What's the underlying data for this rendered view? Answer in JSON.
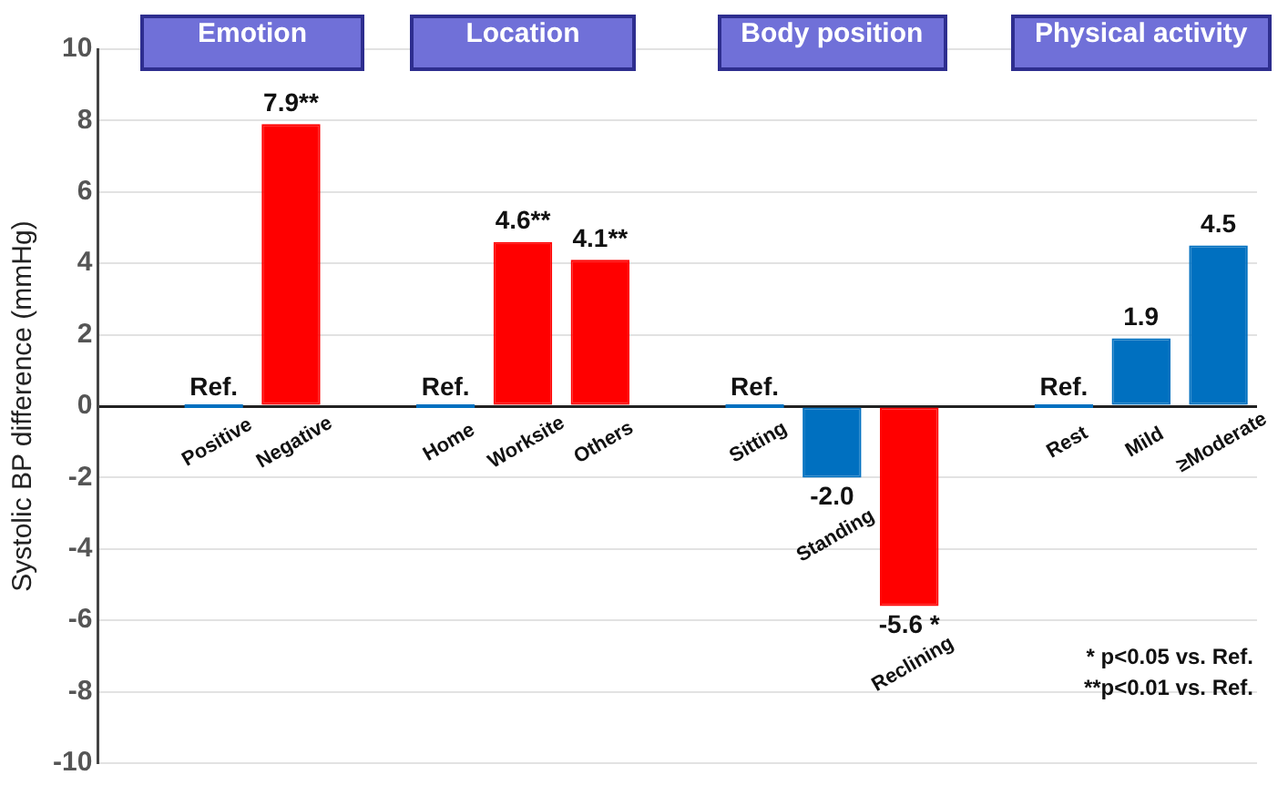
{
  "chart_data": {
    "type": "bar",
    "ylabel": "Systolic BP difference (mmHg)",
    "categories": [
      null,
      "Positive",
      "Negative",
      null,
      "Home",
      "Worksite",
      "Others",
      null,
      "Sitting",
      "Standing",
      "Reclining",
      null,
      "Rest",
      "Mild",
      "≥Moderate"
    ],
    "values": [
      null,
      0,
      7.9,
      null,
      0,
      4.6,
      4.1,
      null,
      0,
      -2.0,
      -5.6,
      null,
      0,
      1.9,
      4.5
    ],
    "colors": [
      "#0070c0",
      "#0070c0",
      "#ff0000",
      "#0070c0",
      "#0070c0",
      "#ff0000",
      "#ff0000",
      "#0070c0",
      "#0070c0",
      "#0070c0",
      "#ff0000",
      "#0070c0",
      "#0070c0",
      "#0070c0",
      "#0070c0"
    ],
    "value_labels": [
      null,
      "Ref.",
      "7.9**",
      null,
      "Ref.",
      "4.6**",
      "4.1**",
      null,
      "Ref.",
      "-2.0",
      "-5.6 *",
      null,
      "Ref.",
      "1.9",
      "4.5"
    ],
    "ylim": [
      -10,
      10
    ],
    "yticks": [
      -10,
      -8,
      -6,
      -4,
      -2,
      0,
      2,
      4,
      6,
      8,
      10
    ],
    "grid": "y",
    "legend": false,
    "annotations": [
      "Emotion",
      "Location",
      "Body position",
      "Physical activity",
      "* p<0.05 vs. Ref.",
      "**p<0.01 vs. Ref."
    ]
  }
}
